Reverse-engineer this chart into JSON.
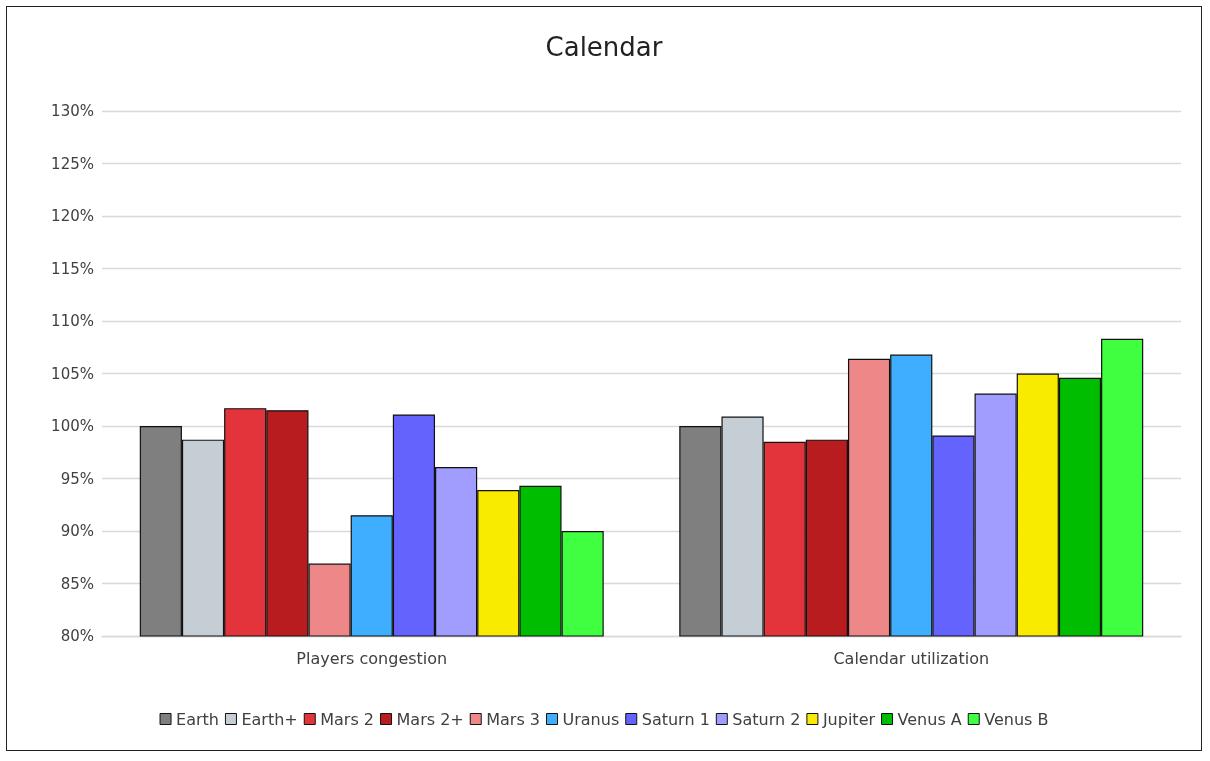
{
  "chart_data": {
    "type": "bar",
    "title": "Calendar",
    "categories": [
      "Players congestion",
      "Calendar utilization"
    ],
    "series": [
      {
        "name": "Earth",
        "color": "#7f7f7f",
        "values": [
          100,
          100
        ]
      },
      {
        "name": "Earth+",
        "color": "#c5ced5",
        "values": [
          98.7,
          100.9
        ]
      },
      {
        "name": "Mars 2",
        "color": "#e2343a",
        "values": [
          101.7,
          98.5
        ]
      },
      {
        "name": "Mars 2+",
        "color": "#b81c1f",
        "values": [
          101.5,
          98.7
        ]
      },
      {
        "name": "Mars 3",
        "color": "#ee8787",
        "values": [
          86.9,
          106.4
        ]
      },
      {
        "name": "Uranus",
        "color": "#40aefe",
        "values": [
          91.5,
          106.8
        ]
      },
      {
        "name": "Saturn 1",
        "color": "#6563fe",
        "values": [
          101.1,
          99.1
        ]
      },
      {
        "name": "Saturn 2",
        "color": "#a19dfe",
        "values": [
          96.1,
          103.1
        ]
      },
      {
        "name": "Jupiter",
        "color": "#f8eb00",
        "values": [
          93.9,
          105.0
        ]
      },
      {
        "name": "Venus A",
        "color": "#00bd00",
        "values": [
          94.3,
          104.6
        ]
      },
      {
        "name": "Venus B",
        "color": "#40fe40",
        "values": [
          90.0,
          108.3
        ]
      }
    ],
    "ylim": [
      80,
      130
    ],
    "yticks": [
      {
        "value": 80,
        "label": "80%"
      },
      {
        "value": 85,
        "label": "85%"
      },
      {
        "value": 90,
        "label": "90%"
      },
      {
        "value": 95,
        "label": "95%"
      },
      {
        "value": 100,
        "label": "100%"
      },
      {
        "value": 105,
        "label": "105%"
      },
      {
        "value": 110,
        "label": "110%"
      },
      {
        "value": 115,
        "label": "115%"
      },
      {
        "value": 120,
        "label": "120%"
      },
      {
        "value": 125,
        "label": "125%"
      },
      {
        "value": 130,
        "label": "130%"
      }
    ],
    "grid": "y",
    "legend": "bottom"
  }
}
